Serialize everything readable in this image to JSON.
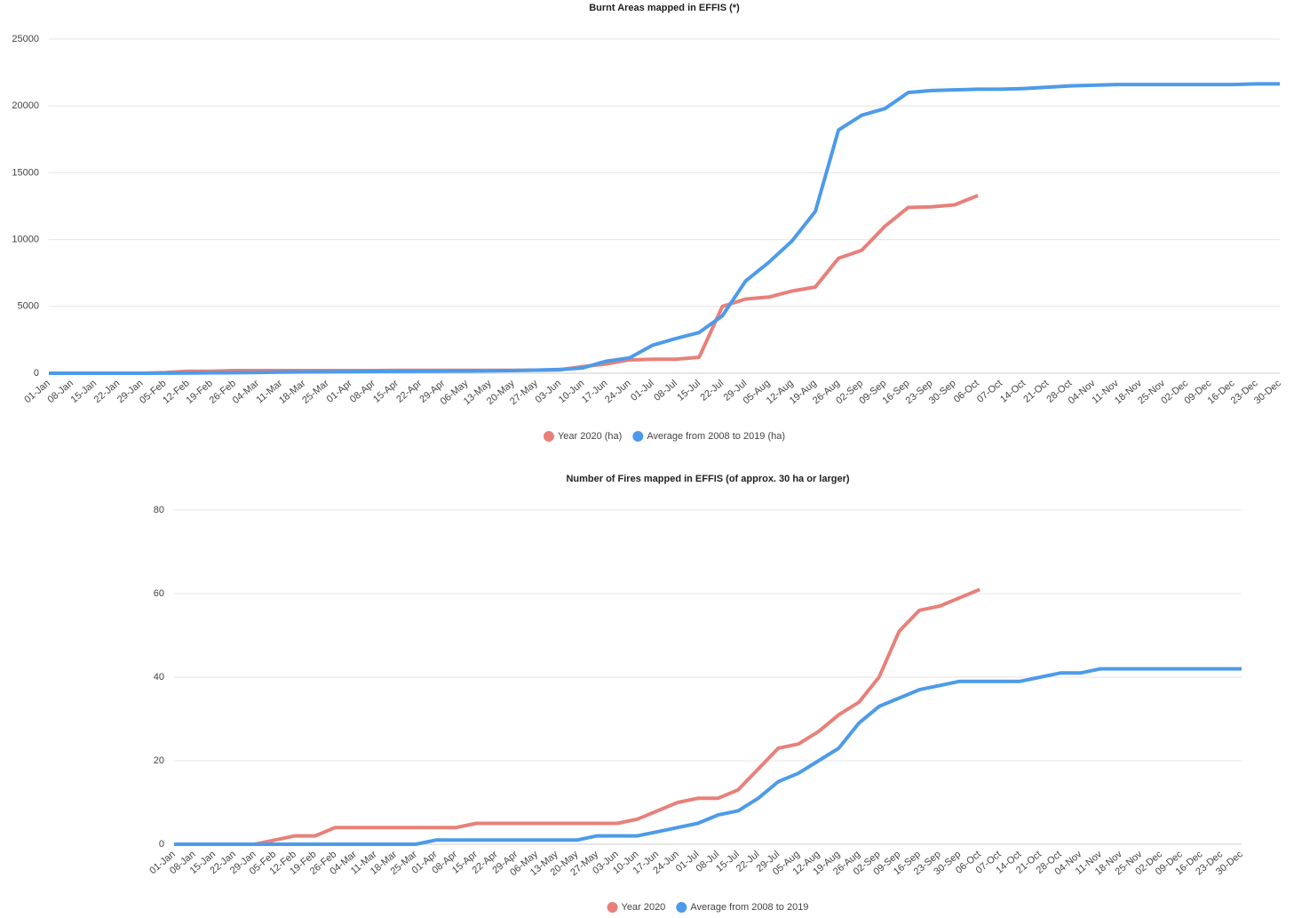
{
  "chart_data": [
    {
      "type": "line",
      "title": "Burnt Areas mapped in EFFIS (*)",
      "categories": [
        "01-Jan",
        "08-Jan",
        "15-Jan",
        "22-Jan",
        "29-Jan",
        "05-Feb",
        "12-Feb",
        "19-Feb",
        "26-Feb",
        "04-Mar",
        "11-Mar",
        "18-Mar",
        "25-Mar",
        "01-Apr",
        "08-Apr",
        "15-Apr",
        "22-Apr",
        "29-Apr",
        "06-May",
        "13-May",
        "20-May",
        "27-May",
        "03-Jun",
        "10-Jun",
        "17-Jun",
        "24-Jun",
        "01-Jul",
        "08-Jul",
        "15-Jul",
        "22-Jul",
        "29-Jul",
        "05-Aug",
        "12-Aug",
        "19-Aug",
        "26-Aug",
        "02-Sep",
        "09-Sep",
        "16-Sep",
        "23-Sep",
        "30-Sep",
        "06-Oct",
        "07-Oct",
        "14-Oct",
        "21-Oct",
        "28-Oct",
        "04-Nov",
        "11-Nov",
        "18-Nov",
        "25-Nov",
        "02-Dec",
        "09-Dec",
        "16-Dec",
        "23-Dec",
        "30-Dec"
      ],
      "series": [
        {
          "name": "Year 2020 (ha)",
          "color": "#e8807a",
          "values": [
            0,
            0,
            0,
            0,
            0,
            50,
            150,
            150,
            200,
            200,
            200,
            200,
            200,
            200,
            200,
            220,
            220,
            220,
            220,
            220,
            220,
            230,
            250,
            500,
            700,
            1000,
            1050,
            1050,
            1200,
            5000,
            5550,
            5700,
            6150,
            6450,
            8600,
            9200,
            11000,
            12400,
            12450,
            12600,
            13300,
            null,
            null,
            null,
            null,
            null,
            null,
            null,
            null,
            null,
            null,
            null,
            null,
            null
          ]
        },
        {
          "name": "Average from 2008 to 2019 (ha)",
          "color": "#4d9be8",
          "values": [
            0,
            0,
            0,
            0,
            0,
            10,
            20,
            30,
            40,
            60,
            80,
            100,
            110,
            120,
            130,
            140,
            150,
            160,
            170,
            180,
            200,
            230,
            280,
            400,
            900,
            1150,
            2100,
            2600,
            3050,
            4300,
            6900,
            8300,
            9900,
            12100,
            18200,
            19300,
            19800,
            21000,
            21150,
            21200,
            21250,
            21250,
            21300,
            21400,
            21500,
            21550,
            21600,
            21600,
            21600,
            21600,
            21600,
            21600,
            21650,
            21650
          ]
        }
      ],
      "ylim": [
        0,
        25000
      ],
      "yticks": [
        0,
        5000,
        10000,
        15000,
        20000,
        25000
      ],
      "grid": true,
      "legend": "bottom"
    },
    {
      "type": "line",
      "title": "Number of Fires mapped in EFFIS (of approx. 30 ha or larger)",
      "categories": [
        "01-Jan",
        "08-Jan",
        "15-Jan",
        "22-Jan",
        "29-Jan",
        "05-Feb",
        "12-Feb",
        "19-Feb",
        "26-Feb",
        "04-Mar",
        "11-Mar",
        "18-Mar",
        "25-Mar",
        "01-Apr",
        "08-Apr",
        "15-Apr",
        "22-Apr",
        "29-Apr",
        "06-May",
        "13-May",
        "20-May",
        "27-May",
        "03-Jun",
        "10-Jun",
        "17-Jun",
        "24-Jun",
        "01-Jul",
        "08-Jul",
        "15-Jul",
        "22-Jul",
        "29-Jul",
        "05-Aug",
        "12-Aug",
        "19-Aug",
        "26-Aug",
        "02-Sep",
        "09-Sep",
        "16-Sep",
        "23-Sep",
        "30-Sep",
        "06-Oct",
        "07-Oct",
        "14-Oct",
        "21-Oct",
        "28-Oct",
        "04-Nov",
        "11-Nov",
        "18-Nov",
        "25-Nov",
        "02-Dec",
        "09-Dec",
        "16-Dec",
        "23-Dec",
        "30-Dec"
      ],
      "series": [
        {
          "name": "Year 2020",
          "color": "#e8807a",
          "values": [
            0,
            0,
            0,
            0,
            0,
            1,
            2,
            2,
            4,
            4,
            4,
            4,
            4,
            4,
            4,
            5,
            5,
            5,
            5,
            5,
            5,
            5,
            5,
            6,
            8,
            10,
            11,
            11,
            13,
            18,
            23,
            24,
            27,
            31,
            34,
            40,
            51,
            56,
            57,
            59,
            61,
            null,
            null,
            null,
            null,
            null,
            null,
            null,
            null,
            null,
            null,
            null,
            null,
            null
          ]
        },
        {
          "name": "Average from 2008 to 2019",
          "color": "#4d9be8",
          "values": [
            0,
            0,
            0,
            0,
            0,
            0,
            0,
            0,
            0,
            0,
            0,
            0,
            0,
            1,
            1,
            1,
            1,
            1,
            1,
            1,
            1,
            2,
            2,
            2,
            3,
            4,
            5,
            7,
            8,
            11,
            15,
            17,
            20,
            23,
            29,
            33,
            35,
            37,
            38,
            39,
            39,
            39,
            39,
            40,
            41,
            41,
            42,
            42,
            42,
            42,
            42,
            42,
            42,
            42
          ]
        }
      ],
      "ylim": [
        0,
        80
      ],
      "yticks": [
        0,
        20,
        40,
        60,
        80
      ],
      "grid": true,
      "legend": "bottom"
    }
  ]
}
